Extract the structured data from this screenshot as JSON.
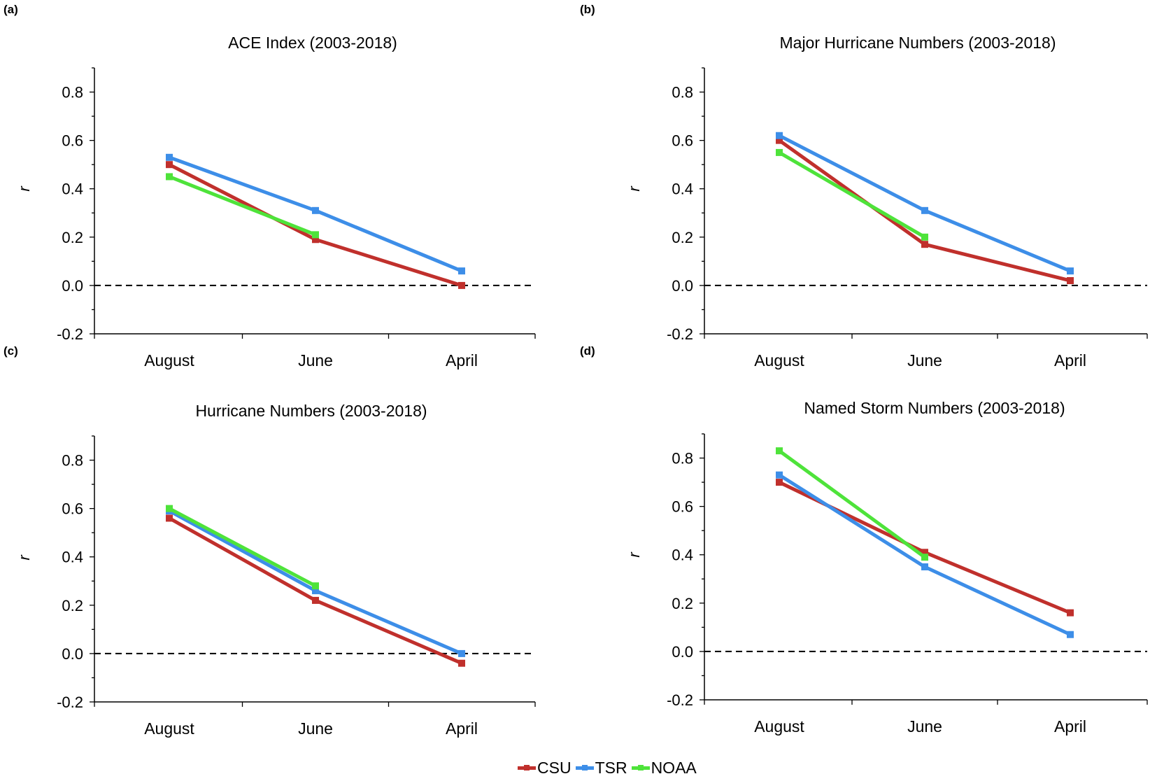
{
  "panels": [
    {
      "label": "(a)",
      "title": "ACE Index (2003-2018)"
    },
    {
      "label": "(b)",
      "title": "Major Hurricane Numbers (2003-2018)"
    },
    {
      "label": "(c)",
      "title": "Hurricane Numbers (2003-2018)"
    },
    {
      "label": "(d)",
      "title": "Named Storm Numbers (2003-2018)"
    }
  ],
  "legend": [
    {
      "name": "CSU",
      "color": "#c0302c"
    },
    {
      "name": "TSR",
      "color": "#3d8ee8"
    },
    {
      "name": "NOAA",
      "color": "#4ee33a"
    }
  ],
  "chart_data": [
    {
      "type": "line",
      "title": "ACE Index (2003-2018)",
      "ylabel": "r",
      "categories": [
        "August",
        "June",
        "April"
      ],
      "ylim": [
        -0.2,
        0.9
      ],
      "yticks": [
        "0.8",
        "0.6",
        "0.4",
        "0.2",
        "0.0",
        "-0.2"
      ],
      "series": [
        {
          "name": "CSU",
          "color": "#c0302c",
          "values": [
            0.5,
            0.19,
            0.0
          ]
        },
        {
          "name": "TSR",
          "color": "#3d8ee8",
          "values": [
            0.53,
            0.31,
            0.06
          ]
        },
        {
          "name": "NOAA",
          "color": "#4ee33a",
          "values": [
            0.45,
            0.21,
            null
          ]
        }
      ]
    },
    {
      "type": "line",
      "title": "Major Hurricane Numbers (2003-2018)",
      "ylabel": "r",
      "categories": [
        "August",
        "June",
        "April"
      ],
      "ylim": [
        -0.2,
        0.9
      ],
      "yticks": [
        "0.8",
        "0.6",
        "0.4",
        "0.2",
        "0.0",
        "-0.2"
      ],
      "series": [
        {
          "name": "CSU",
          "color": "#c0302c",
          "values": [
            0.6,
            0.17,
            0.02
          ]
        },
        {
          "name": "TSR",
          "color": "#3d8ee8",
          "values": [
            0.62,
            0.31,
            0.06
          ]
        },
        {
          "name": "NOAA",
          "color": "#4ee33a",
          "values": [
            0.55,
            0.2,
            null
          ]
        }
      ]
    },
    {
      "type": "line",
      "title": "Hurricane Numbers (2003-2018)",
      "ylabel": "r",
      "categories": [
        "August",
        "June",
        "April"
      ],
      "ylim": [
        -0.2,
        0.9
      ],
      "yticks": [
        "0.8",
        "0.6",
        "0.4",
        "0.2",
        "0.0",
        "-0.2"
      ],
      "series": [
        {
          "name": "CSU",
          "color": "#c0302c",
          "values": [
            0.56,
            0.22,
            -0.04
          ]
        },
        {
          "name": "TSR",
          "color": "#3d8ee8",
          "values": [
            0.59,
            0.26,
            0.0
          ]
        },
        {
          "name": "NOAA",
          "color": "#4ee33a",
          "values": [
            0.6,
            0.28,
            null
          ]
        }
      ]
    },
    {
      "type": "line",
      "title": "Named Storm Numbers (2003-2018)",
      "ylabel": "r",
      "categories": [
        "August",
        "June",
        "April"
      ],
      "ylim": [
        -0.2,
        0.9
      ],
      "yticks": [
        "0.8",
        "0.6",
        "0.4",
        "0.2",
        "0.0",
        "-0.2"
      ],
      "series": [
        {
          "name": "CSU",
          "color": "#c0302c",
          "values": [
            0.7,
            0.41,
            0.16
          ]
        },
        {
          "name": "TSR",
          "color": "#3d8ee8",
          "values": [
            0.73,
            0.35,
            0.07
          ]
        },
        {
          "name": "NOAA",
          "color": "#4ee33a",
          "values": [
            0.83,
            0.39,
            null
          ]
        }
      ]
    }
  ]
}
